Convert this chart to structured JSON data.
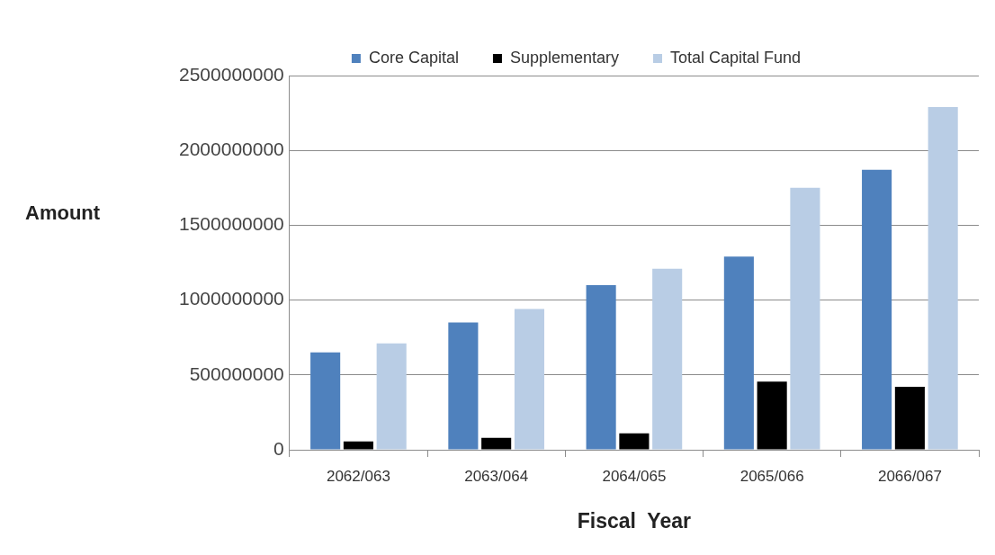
{
  "chart_data": {
    "type": "bar",
    "xlabel": "Fiscal  Year",
    "ylabel": "Amount",
    "categories": [
      "2062/063",
      "2063/064",
      "2064/065",
      "2065/066",
      "2066/067"
    ],
    "series": [
      {
        "name": "Core Capital",
        "color": "#4f81bd",
        "values": [
          650000000,
          850000000,
          1100000000,
          1290000000,
          1870000000
        ]
      },
      {
        "name": "Supplementary",
        "color": "#000000",
        "values": [
          55000000,
          80000000,
          110000000,
          455000000,
          420000000
        ]
      },
      {
        "name": "Total Capital Fund",
        "color": "#b9cde5",
        "values": [
          710000000,
          940000000,
          1210000000,
          1750000000,
          2290000000
        ]
      }
    ],
    "ylim": [
      0,
      2500000000
    ],
    "yticks": [
      0,
      500000000,
      1000000000,
      1500000000,
      2000000000,
      2500000000
    ],
    "grid": "y",
    "legend": "top"
  }
}
